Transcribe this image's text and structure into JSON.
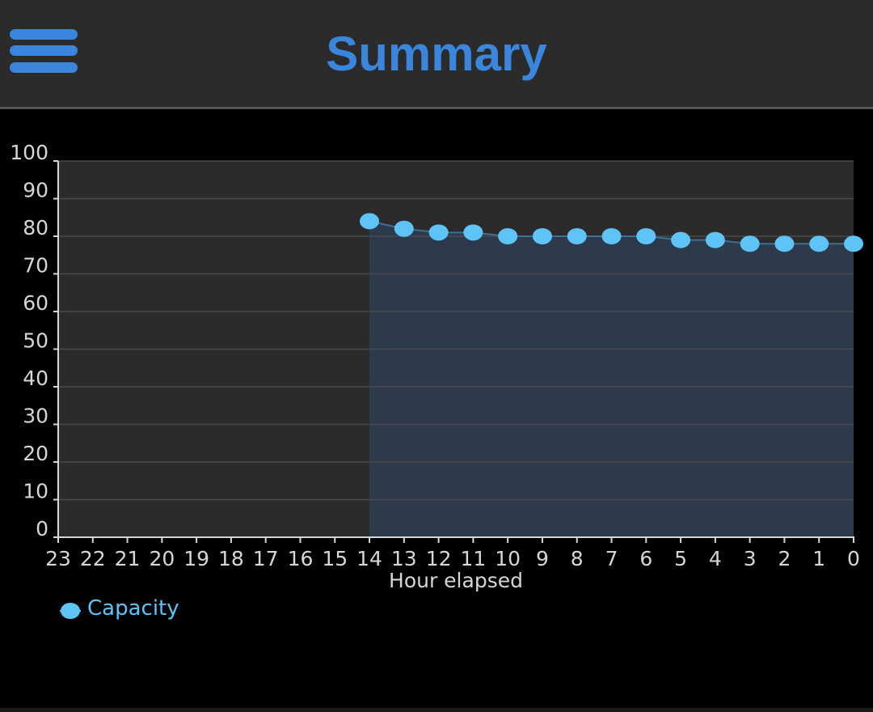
{
  "header": {
    "title": "Summary",
    "menu_icon": "hamburger-menu-icon"
  },
  "colors": {
    "accent": "#3a86dd",
    "series": "#5ec4f7",
    "plot_background": "#2b2b2b",
    "area_fill": "#2c3a4b",
    "text": "#d6d6d6"
  },
  "chart_data": {
    "type": "area",
    "title": "",
    "xlabel": "Hour elapsed",
    "ylabel": "",
    "x_ticks": [
      "23",
      "22",
      "21",
      "20",
      "19",
      "18",
      "17",
      "16",
      "15",
      "14",
      "13",
      "12",
      "11",
      "10",
      "9",
      "8",
      "7",
      "6",
      "5",
      "4",
      "3",
      "2",
      "1",
      "0"
    ],
    "y_ticks": [
      "0",
      "10",
      "20",
      "30",
      "40",
      "50",
      "60",
      "70",
      "80",
      "90",
      "100"
    ],
    "xlim": [
      23,
      0
    ],
    "ylim": [
      0,
      100
    ],
    "grid": true,
    "legend": "bottom-left",
    "series": [
      {
        "name": "Capacity",
        "x": [
          14,
          13,
          12,
          11,
          10,
          9,
          8,
          7,
          6,
          5,
          4,
          3,
          2,
          1,
          0
        ],
        "values": [
          84,
          82,
          81,
          81,
          80,
          80,
          80,
          80,
          80,
          79,
          79,
          78,
          78,
          78,
          78
        ]
      }
    ]
  }
}
